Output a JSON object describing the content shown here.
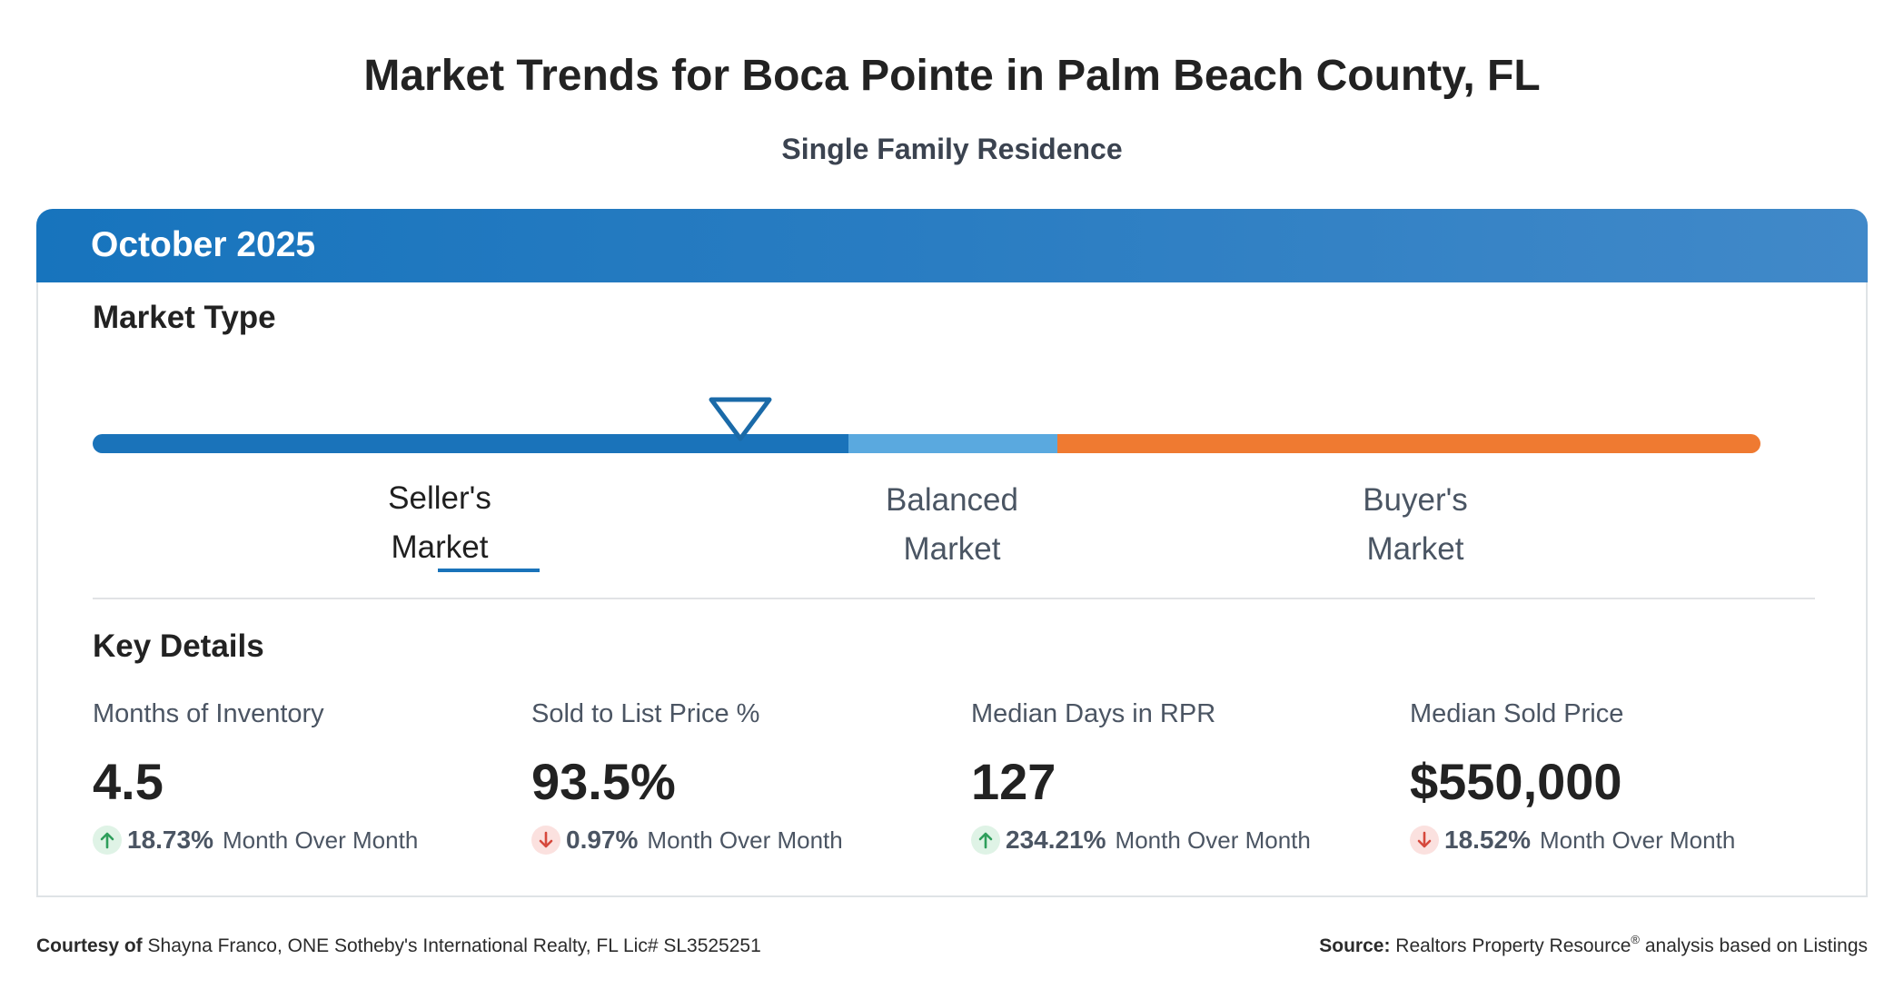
{
  "page": {
    "title": "Market Trends for Boca Pointe in Palm Beach County, FL",
    "subtitle": "Single Family Residence"
  },
  "card": {
    "header": "October 2025",
    "market_type_title": "Market Type",
    "market_indicator_position_fraction": 0.375,
    "market_labels": [
      {
        "line1": "Seller's",
        "line2": "Market",
        "active": true
      },
      {
        "line1": "Balanced",
        "line2": "Market",
        "active": false
      },
      {
        "line1": "Buyer's",
        "line2": "Market",
        "active": false
      }
    ],
    "key_details_title": "Key Details",
    "metrics": [
      {
        "label": "Months of Inventory",
        "value": "4.5",
        "direction": "up",
        "change": "18.73%",
        "change_text": "Month Over Month"
      },
      {
        "label": "Sold to List Price %",
        "value": "93.5%",
        "direction": "down",
        "change": "0.97%",
        "change_text": "Month Over Month"
      },
      {
        "label": "Median Days in RPR",
        "value": "127",
        "direction": "up",
        "change": "234.21%",
        "change_text": "Month Over Month"
      },
      {
        "label": "Median Sold Price",
        "value": "$550,000",
        "direction": "down",
        "change": "18.52%",
        "change_text": "Month Over Month"
      }
    ]
  },
  "footer": {
    "courtesy_label": "Courtesy of",
    "courtesy_text": "Shayna Franco, ONE Sotheby's International Realty, FL Lic# SL3525251",
    "source_label": "Source:",
    "source_text_1": "Realtors Property Resource",
    "source_sup": "®",
    "source_text_2": "analysis based on Listings"
  },
  "colors": {
    "header_blue": "#1774bd",
    "seller_blue": "#1a73ba",
    "balanced_light_blue": "#5aa9df",
    "buyer_orange": "#ef7a31",
    "up_green": "#2e9e5b",
    "down_red": "#d6483c"
  },
  "icons": {
    "marker": "triangle-down-marker-icon",
    "up": "arrow-up-icon",
    "down": "arrow-down-icon"
  }
}
